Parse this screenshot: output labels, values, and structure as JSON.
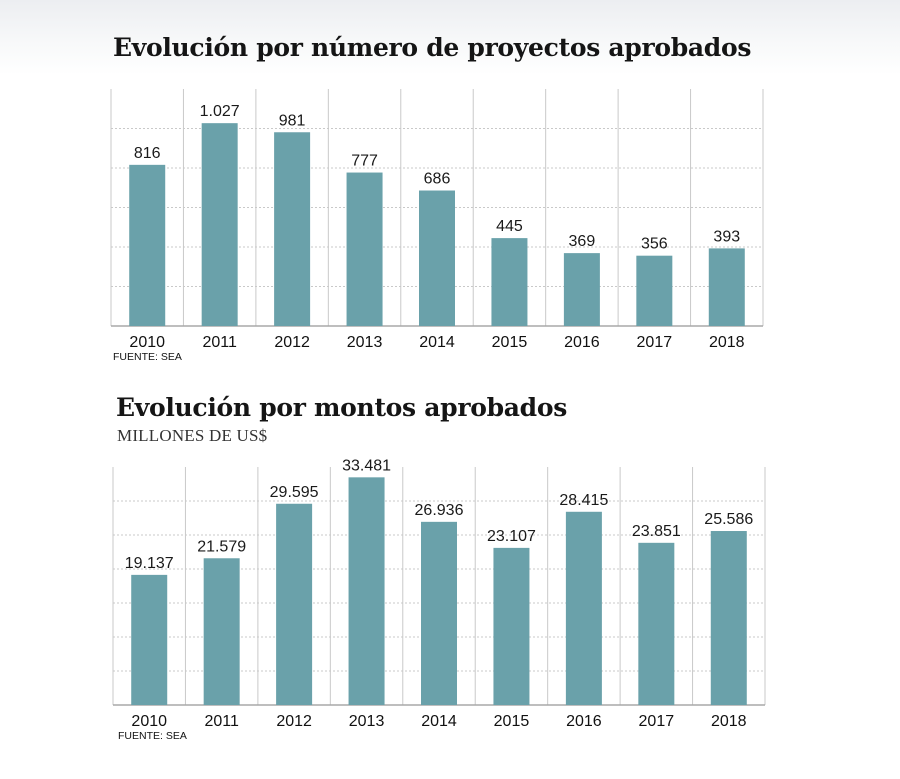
{
  "colors": {
    "bar": "#6aa1aa",
    "grid": "#c9c9c9",
    "axis": "#a8a8a8"
  },
  "chart_data": [
    {
      "type": "bar",
      "title": "Evolución por número de proyectos aprobados",
      "subtitle": "",
      "source": "FUENTE: SEA",
      "categories": [
        "2010",
        "2011",
        "2012",
        "2013",
        "2014",
        "2015",
        "2016",
        "2017",
        "2018"
      ],
      "values": [
        816,
        1027,
        981,
        777,
        686,
        445,
        369,
        356,
        393
      ],
      "value_labels": [
        "816",
        "1.027",
        "981",
        "777",
        "686",
        "445",
        "369",
        "356",
        "393"
      ],
      "ylim": [
        0,
        1200
      ],
      "grid": true,
      "xlabel": "",
      "ylabel": ""
    },
    {
      "type": "bar",
      "title": "Evolución por montos aprobados",
      "subtitle": "MILLONES DE US$",
      "source": "FUENTE: SEA",
      "categories": [
        "2010",
        "2011",
        "2012",
        "2013",
        "2014",
        "2015",
        "2016",
        "2017",
        "2018"
      ],
      "values": [
        19137,
        21579,
        29595,
        33481,
        26936,
        23107,
        28415,
        23851,
        25586
      ],
      "value_labels": [
        "19.137",
        "21.579",
        "29.595",
        "33.481",
        "26.936",
        "23.107",
        "28.415",
        "23.851",
        "25.586"
      ],
      "ylim": [
        0,
        35000
      ],
      "grid": true,
      "xlabel": "",
      "ylabel": ""
    }
  ]
}
